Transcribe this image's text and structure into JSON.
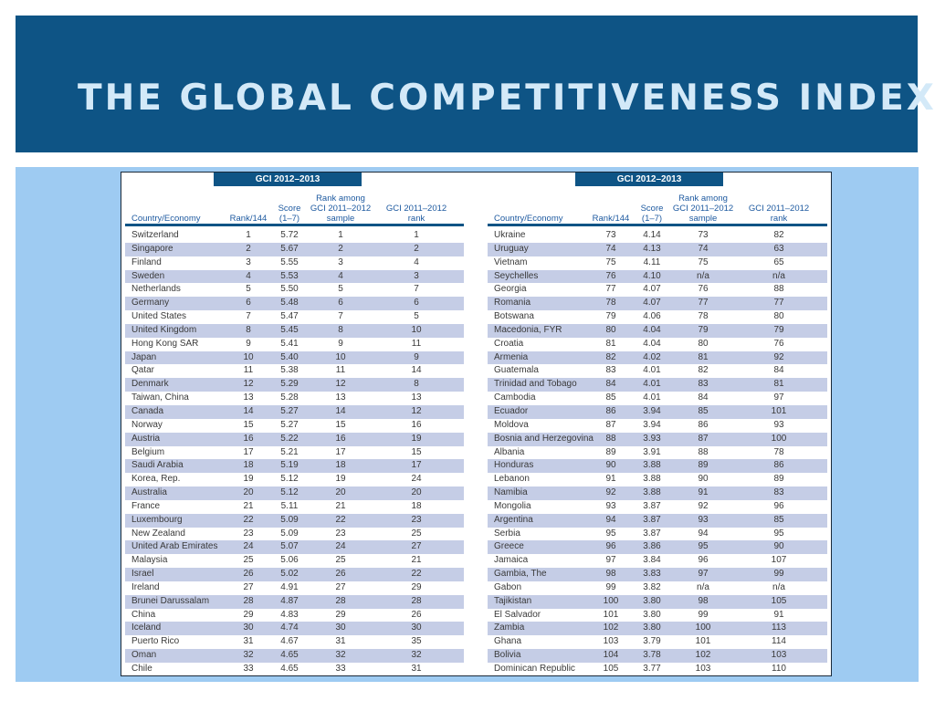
{
  "title": "THE GLOBAL COMPETITIVENESS INDEX",
  "colors": {
    "banner": "#0e5485",
    "title_text": "#d3e9f8",
    "panel": "#9ecbf2",
    "row_stripe": "#c5cde6",
    "header_text": "#1e5aa0"
  },
  "table": {
    "group_label": "GCI 2012–2013",
    "columns": {
      "country": "Country/Economy",
      "rank": "Rank/144",
      "score_line1": "Score",
      "score_line2": "(1–7)",
      "among_line1": "Rank among",
      "among_line2": "GCI 2011–2012",
      "among_line3": "sample",
      "prev_line1": "GCI 2011–2012",
      "prev_line2": "rank"
    },
    "left_rows": [
      [
        "Switzerland",
        "1",
        "5.72",
        "1",
        "1"
      ],
      [
        "Singapore",
        "2",
        "5.67",
        "2",
        "2"
      ],
      [
        "Finland",
        "3",
        "5.55",
        "3",
        "4"
      ],
      [
        "Sweden",
        "4",
        "5.53",
        "4",
        "3"
      ],
      [
        "Netherlands",
        "5",
        "5.50",
        "5",
        "7"
      ],
      [
        "Germany",
        "6",
        "5.48",
        "6",
        "6"
      ],
      [
        "United States",
        "7",
        "5.47",
        "7",
        "5"
      ],
      [
        "United Kingdom",
        "8",
        "5.45",
        "8",
        "10"
      ],
      [
        "Hong Kong SAR",
        "9",
        "5.41",
        "9",
        "11"
      ],
      [
        "Japan",
        "10",
        "5.40",
        "10",
        "9"
      ],
      [
        "Qatar",
        "11",
        "5.38",
        "11",
        "14"
      ],
      [
        "Denmark",
        "12",
        "5.29",
        "12",
        "8"
      ],
      [
        "Taiwan, China",
        "13",
        "5.28",
        "13",
        "13"
      ],
      [
        "Canada",
        "14",
        "5.27",
        "14",
        "12"
      ],
      [
        "Norway",
        "15",
        "5.27",
        "15",
        "16"
      ],
      [
        "Austria",
        "16",
        "5.22",
        "16",
        "19"
      ],
      [
        "Belgium",
        "17",
        "5.21",
        "17",
        "15"
      ],
      [
        "Saudi Arabia",
        "18",
        "5.19",
        "18",
        "17"
      ],
      [
        "Korea, Rep.",
        "19",
        "5.12",
        "19",
        "24"
      ],
      [
        "Australia",
        "20",
        "5.12",
        "20",
        "20"
      ],
      [
        "France",
        "21",
        "5.11",
        "21",
        "18"
      ],
      [
        "Luxembourg",
        "22",
        "5.09",
        "22",
        "23"
      ],
      [
        "New Zealand",
        "23",
        "5.09",
        "23",
        "25"
      ],
      [
        "United Arab Emirates",
        "24",
        "5.07",
        "24",
        "27"
      ],
      [
        "Malaysia",
        "25",
        "5.06",
        "25",
        "21"
      ],
      [
        "Israel",
        "26",
        "5.02",
        "26",
        "22"
      ],
      [
        "Ireland",
        "27",
        "4.91",
        "27",
        "29"
      ],
      [
        "Brunei Darussalam",
        "28",
        "4.87",
        "28",
        "28"
      ],
      [
        "China",
        "29",
        "4.83",
        "29",
        "26"
      ],
      [
        "Iceland",
        "30",
        "4.74",
        "30",
        "30"
      ],
      [
        "Puerto Rico",
        "31",
        "4.67",
        "31",
        "35"
      ],
      [
        "Oman",
        "32",
        "4.65",
        "32",
        "32"
      ],
      [
        "Chile",
        "33",
        "4.65",
        "33",
        "31"
      ]
    ],
    "right_rows": [
      [
        "Ukraine",
        "73",
        "4.14",
        "73",
        "82"
      ],
      [
        "Uruguay",
        "74",
        "4.13",
        "74",
        "63"
      ],
      [
        "Vietnam",
        "75",
        "4.11",
        "75",
        "65"
      ],
      [
        "Seychelles",
        "76",
        "4.10",
        "n/a",
        "n/a"
      ],
      [
        "Georgia",
        "77",
        "4.07",
        "76",
        "88"
      ],
      [
        "Romania",
        "78",
        "4.07",
        "77",
        "77"
      ],
      [
        "Botswana",
        "79",
        "4.06",
        "78",
        "80"
      ],
      [
        "Macedonia, FYR",
        "80",
        "4.04",
        "79",
        "79"
      ],
      [
        "Croatia",
        "81",
        "4.04",
        "80",
        "76"
      ],
      [
        "Armenia",
        "82",
        "4.02",
        "81",
        "92"
      ],
      [
        "Guatemala",
        "83",
        "4.01",
        "82",
        "84"
      ],
      [
        "Trinidad and Tobago",
        "84",
        "4.01",
        "83",
        "81"
      ],
      [
        "Cambodia",
        "85",
        "4.01",
        "84",
        "97"
      ],
      [
        "Ecuador",
        "86",
        "3.94",
        "85",
        "101"
      ],
      [
        "Moldova",
        "87",
        "3.94",
        "86",
        "93"
      ],
      [
        "Bosnia and Herzegovina",
        "88",
        "3.93",
        "87",
        "100"
      ],
      [
        "Albania",
        "89",
        "3.91",
        "88",
        "78"
      ],
      [
        "Honduras",
        "90",
        "3.88",
        "89",
        "86"
      ],
      [
        "Lebanon",
        "91",
        "3.88",
        "90",
        "89"
      ],
      [
        "Namibia",
        "92",
        "3.88",
        "91",
        "83"
      ],
      [
        "Mongolia",
        "93",
        "3.87",
        "92",
        "96"
      ],
      [
        "Argentina",
        "94",
        "3.87",
        "93",
        "85"
      ],
      [
        "Serbia",
        "95",
        "3.87",
        "94",
        "95"
      ],
      [
        "Greece",
        "96",
        "3.86",
        "95",
        "90"
      ],
      [
        "Jamaica",
        "97",
        "3.84",
        "96",
        "107"
      ],
      [
        "Gambia, The",
        "98",
        "3.83",
        "97",
        "99"
      ],
      [
        "Gabon",
        "99",
        "3.82",
        "n/a",
        "n/a"
      ],
      [
        "Tajikistan",
        "100",
        "3.80",
        "98",
        "105"
      ],
      [
        "El Salvador",
        "101",
        "3.80",
        "99",
        "91"
      ],
      [
        "Zambia",
        "102",
        "3.80",
        "100",
        "113"
      ],
      [
        "Ghana",
        "103",
        "3.79",
        "101",
        "114"
      ],
      [
        "Bolivia",
        "104",
        "3.78",
        "102",
        "103"
      ],
      [
        "Dominican Republic",
        "105",
        "3.77",
        "103",
        "110"
      ]
    ]
  }
}
